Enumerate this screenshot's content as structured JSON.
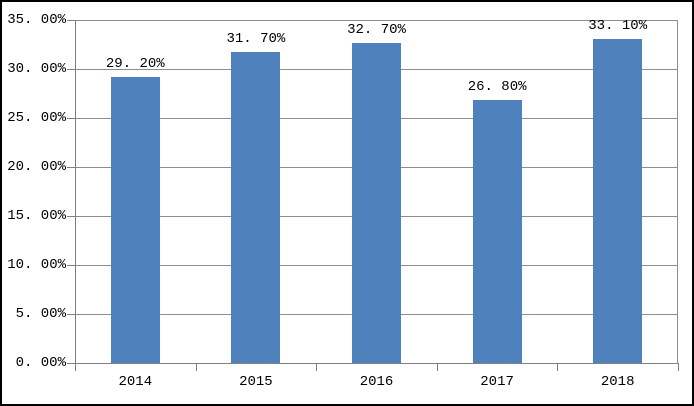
{
  "chart_data": {
    "type": "bar",
    "categories": [
      "2014",
      "2015",
      "2016",
      "2017",
      "2018"
    ],
    "values": [
      29.2,
      31.7,
      32.7,
      26.8,
      33.1
    ],
    "data_labels": [
      "29.20%",
      "31.70%",
      "32.70%",
      "26.80%",
      "33.10%"
    ],
    "y_tick_labels": [
      "0.00%",
      "5.00%",
      "10.00%",
      "15.00%",
      "20.00%",
      "25.00%",
      "30.00%",
      "35.00%"
    ],
    "y_tick_values": [
      0,
      5,
      10,
      15,
      20,
      25,
      30,
      35
    ],
    "title": "",
    "xlabel": "",
    "ylabel": "",
    "ylim": [
      0,
      35
    ],
    "grid": true,
    "legend": false,
    "legend_position": "none",
    "colors": {
      "bar": "#4F81BD",
      "gridline": "#8e8e8e",
      "axis": "#7f7f7f",
      "frame_border": "#000000",
      "background": "#ffffff",
      "text": "#000000"
    }
  }
}
